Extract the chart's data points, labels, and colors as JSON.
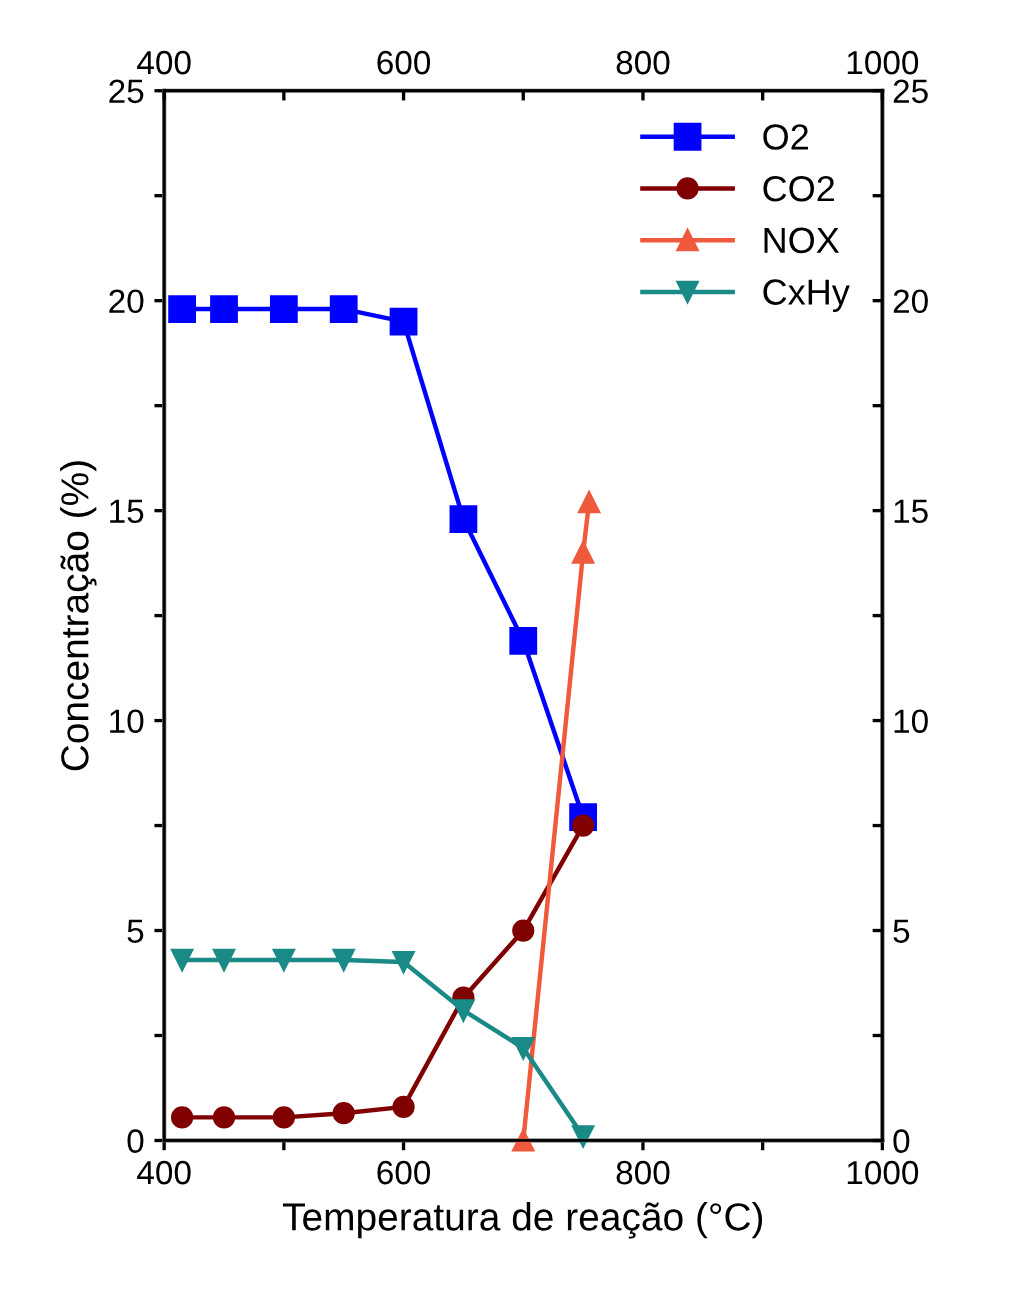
{
  "chart_data": {
    "type": "line",
    "xlabel": "Temperatura de reação (°C)",
    "ylabel": "Concentração (%)",
    "xlim": [
      400,
      1000
    ],
    "xticks": [
      400,
      {
        "value": 500,
        "label": null
      },
      600,
      {
        "value": 700,
        "label": null
      },
      800,
      {
        "value": 900,
        "label": null
      },
      1000
    ],
    "x2lim": [
      400,
      1000
    ],
    "x2ticks": [
      400,
      {
        "value": 500,
        "label": null
      },
      600,
      {
        "value": 700,
        "label": null
      },
      800,
      {
        "value": 900,
        "label": null
      },
      1000
    ],
    "ylim": [
      0,
      25
    ],
    "yticks": [
      0,
      {
        "value": 2.5,
        "label": null
      },
      5,
      {
        "value": 7.5,
        "label": null
      },
      10,
      {
        "value": 12.5,
        "label": null
      },
      15,
      {
        "value": 17.5,
        "label": null
      },
      20,
      {
        "value": 22.5,
        "label": null
      },
      25
    ],
    "y2lim": [
      0,
      25
    ],
    "y2ticks": [
      0,
      {
        "value": 2.5,
        "label": null
      },
      5,
      {
        "value": 7.5,
        "label": null
      },
      10,
      {
        "value": 12.5,
        "label": null
      },
      15,
      {
        "value": 17.5,
        "label": null
      },
      20,
      {
        "value": 22.5,
        "label": null
      },
      25
    ],
    "grid": false,
    "legend": "top right",
    "line_style": "solid",
    "series": [
      {
        "name": "O2",
        "color": "#0000ff",
        "marker": "square",
        "x": [
          415,
          450,
          500,
          550,
          600,
          650,
          700,
          750
        ],
        "values": [
          19.8,
          19.8,
          19.8,
          19.8,
          19.5,
          14.8,
          11.9,
          7.7
        ]
      },
      {
        "name": "CO2",
        "color": "#800000",
        "marker": "circle",
        "x": [
          415,
          450,
          500,
          550,
          600,
          650,
          700,
          750
        ],
        "values": [
          0.55,
          0.55,
          0.55,
          0.65,
          0.8,
          3.4,
          5.0,
          7.5
        ]
      },
      {
        "name": "NOX",
        "color": "#f05a3c",
        "marker": "triangle",
        "x": [
          700,
          750,
          755
        ],
        "values": [
          0,
          14.0,
          15.2
        ]
      },
      {
        "name": "CxHy",
        "color": "#1a8a86",
        "marker": "triangle_down",
        "x": [
          415,
          450,
          500,
          550,
          600,
          650,
          700,
          750
        ],
        "values": [
          4.3,
          4.3,
          4.3,
          4.3,
          4.25,
          3.1,
          2.2,
          0.1
        ]
      }
    ]
  }
}
